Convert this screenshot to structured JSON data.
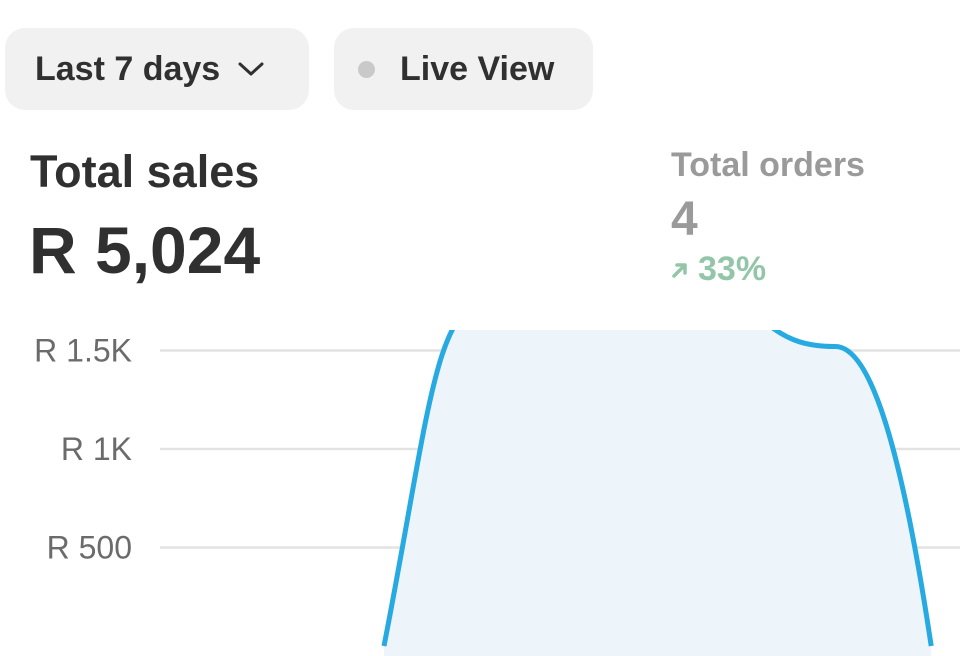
{
  "filters": {
    "range_label": "Last 7 days",
    "live_label": "Live View",
    "icons": {
      "range": "chevron-down-icon",
      "live": "status-dot-icon"
    }
  },
  "sales": {
    "title": "Total sales",
    "value": "R 5,024"
  },
  "orders": {
    "title": "Total orders",
    "value": "4",
    "delta": "33%",
    "delta_icon": "arrow-up-right-icon",
    "delta_color": "#93c5a9"
  },
  "colors": {
    "line": "#27aae1",
    "fill": "#eef5fa",
    "grid": "#e3e3e3",
    "pill_bg": "#f1f1f1"
  },
  "chart_data": {
    "type": "area",
    "yticks": [
      {
        "label": "R 1.5K",
        "value": 1500
      },
      {
        "label": "R 1K",
        "value": 1000
      },
      {
        "label": "R 500",
        "value": 500
      }
    ],
    "x_fraction": [
      0.4,
      0.51,
      0.72,
      0.87,
      0.97
    ],
    "values": [
      0,
      1750,
      1750,
      1520,
      0
    ],
    "grid": true
  }
}
